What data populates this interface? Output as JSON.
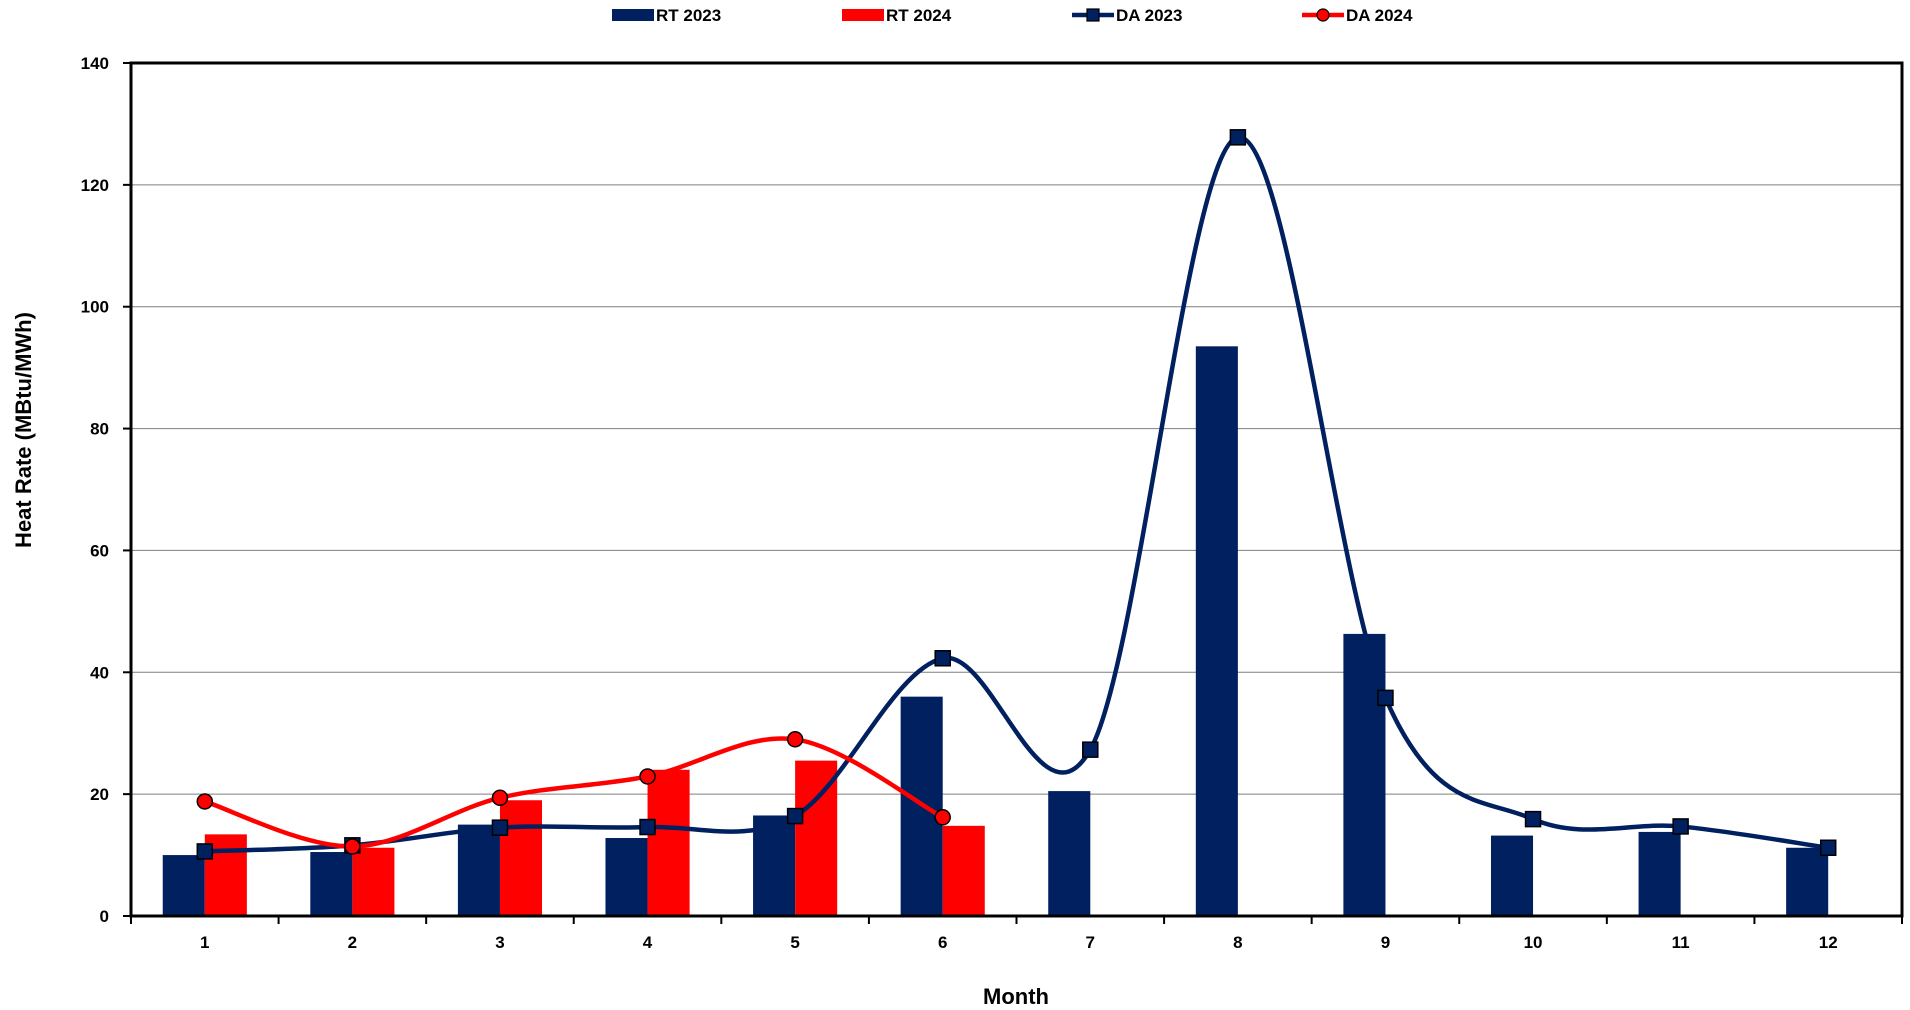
{
  "chart_data": {
    "type": "bar",
    "xlabel": "Month",
    "ylabel": "Heat Rate (MBtu/MWh)",
    "categories": [
      "1",
      "2",
      "3",
      "4",
      "5",
      "6",
      "7",
      "8",
      "9",
      "10",
      "11",
      "12"
    ],
    "ylim": [
      0,
      140
    ],
    "yticks": [
      "0",
      "20",
      "40",
      "60",
      "80",
      "100",
      "120",
      "140"
    ],
    "grid": "horizontal",
    "legend_position": "top",
    "series": [
      {
        "name": "RT 2023",
        "kind": "bar",
        "color": "#002060",
        "values": [
          10,
          10.5,
          15,
          12.8,
          16.5,
          36,
          20.5,
          93.5,
          46.3,
          13.2,
          13.8,
          11.2
        ]
      },
      {
        "name": "RT 2024",
        "kind": "bar",
        "color": "#ff0000",
        "values": [
          13.4,
          11.2,
          19,
          24,
          25.5,
          14.8,
          null,
          null,
          null,
          null,
          null,
          null
        ]
      },
      {
        "name": "DA 2023",
        "kind": "line",
        "marker": "square",
        "color": "#002060",
        "values": [
          10.6,
          11.6,
          14.5,
          14.6,
          16.4,
          42.3,
          27.3,
          127.8,
          35.8,
          15.9,
          14.7,
          11.2
        ]
      },
      {
        "name": "DA 2024",
        "kind": "line",
        "marker": "circle",
        "color": "#ff0000",
        "values": [
          18.8,
          11.4,
          19.4,
          22.9,
          29,
          16.2,
          null,
          null,
          null,
          null,
          null,
          null
        ]
      }
    ]
  }
}
